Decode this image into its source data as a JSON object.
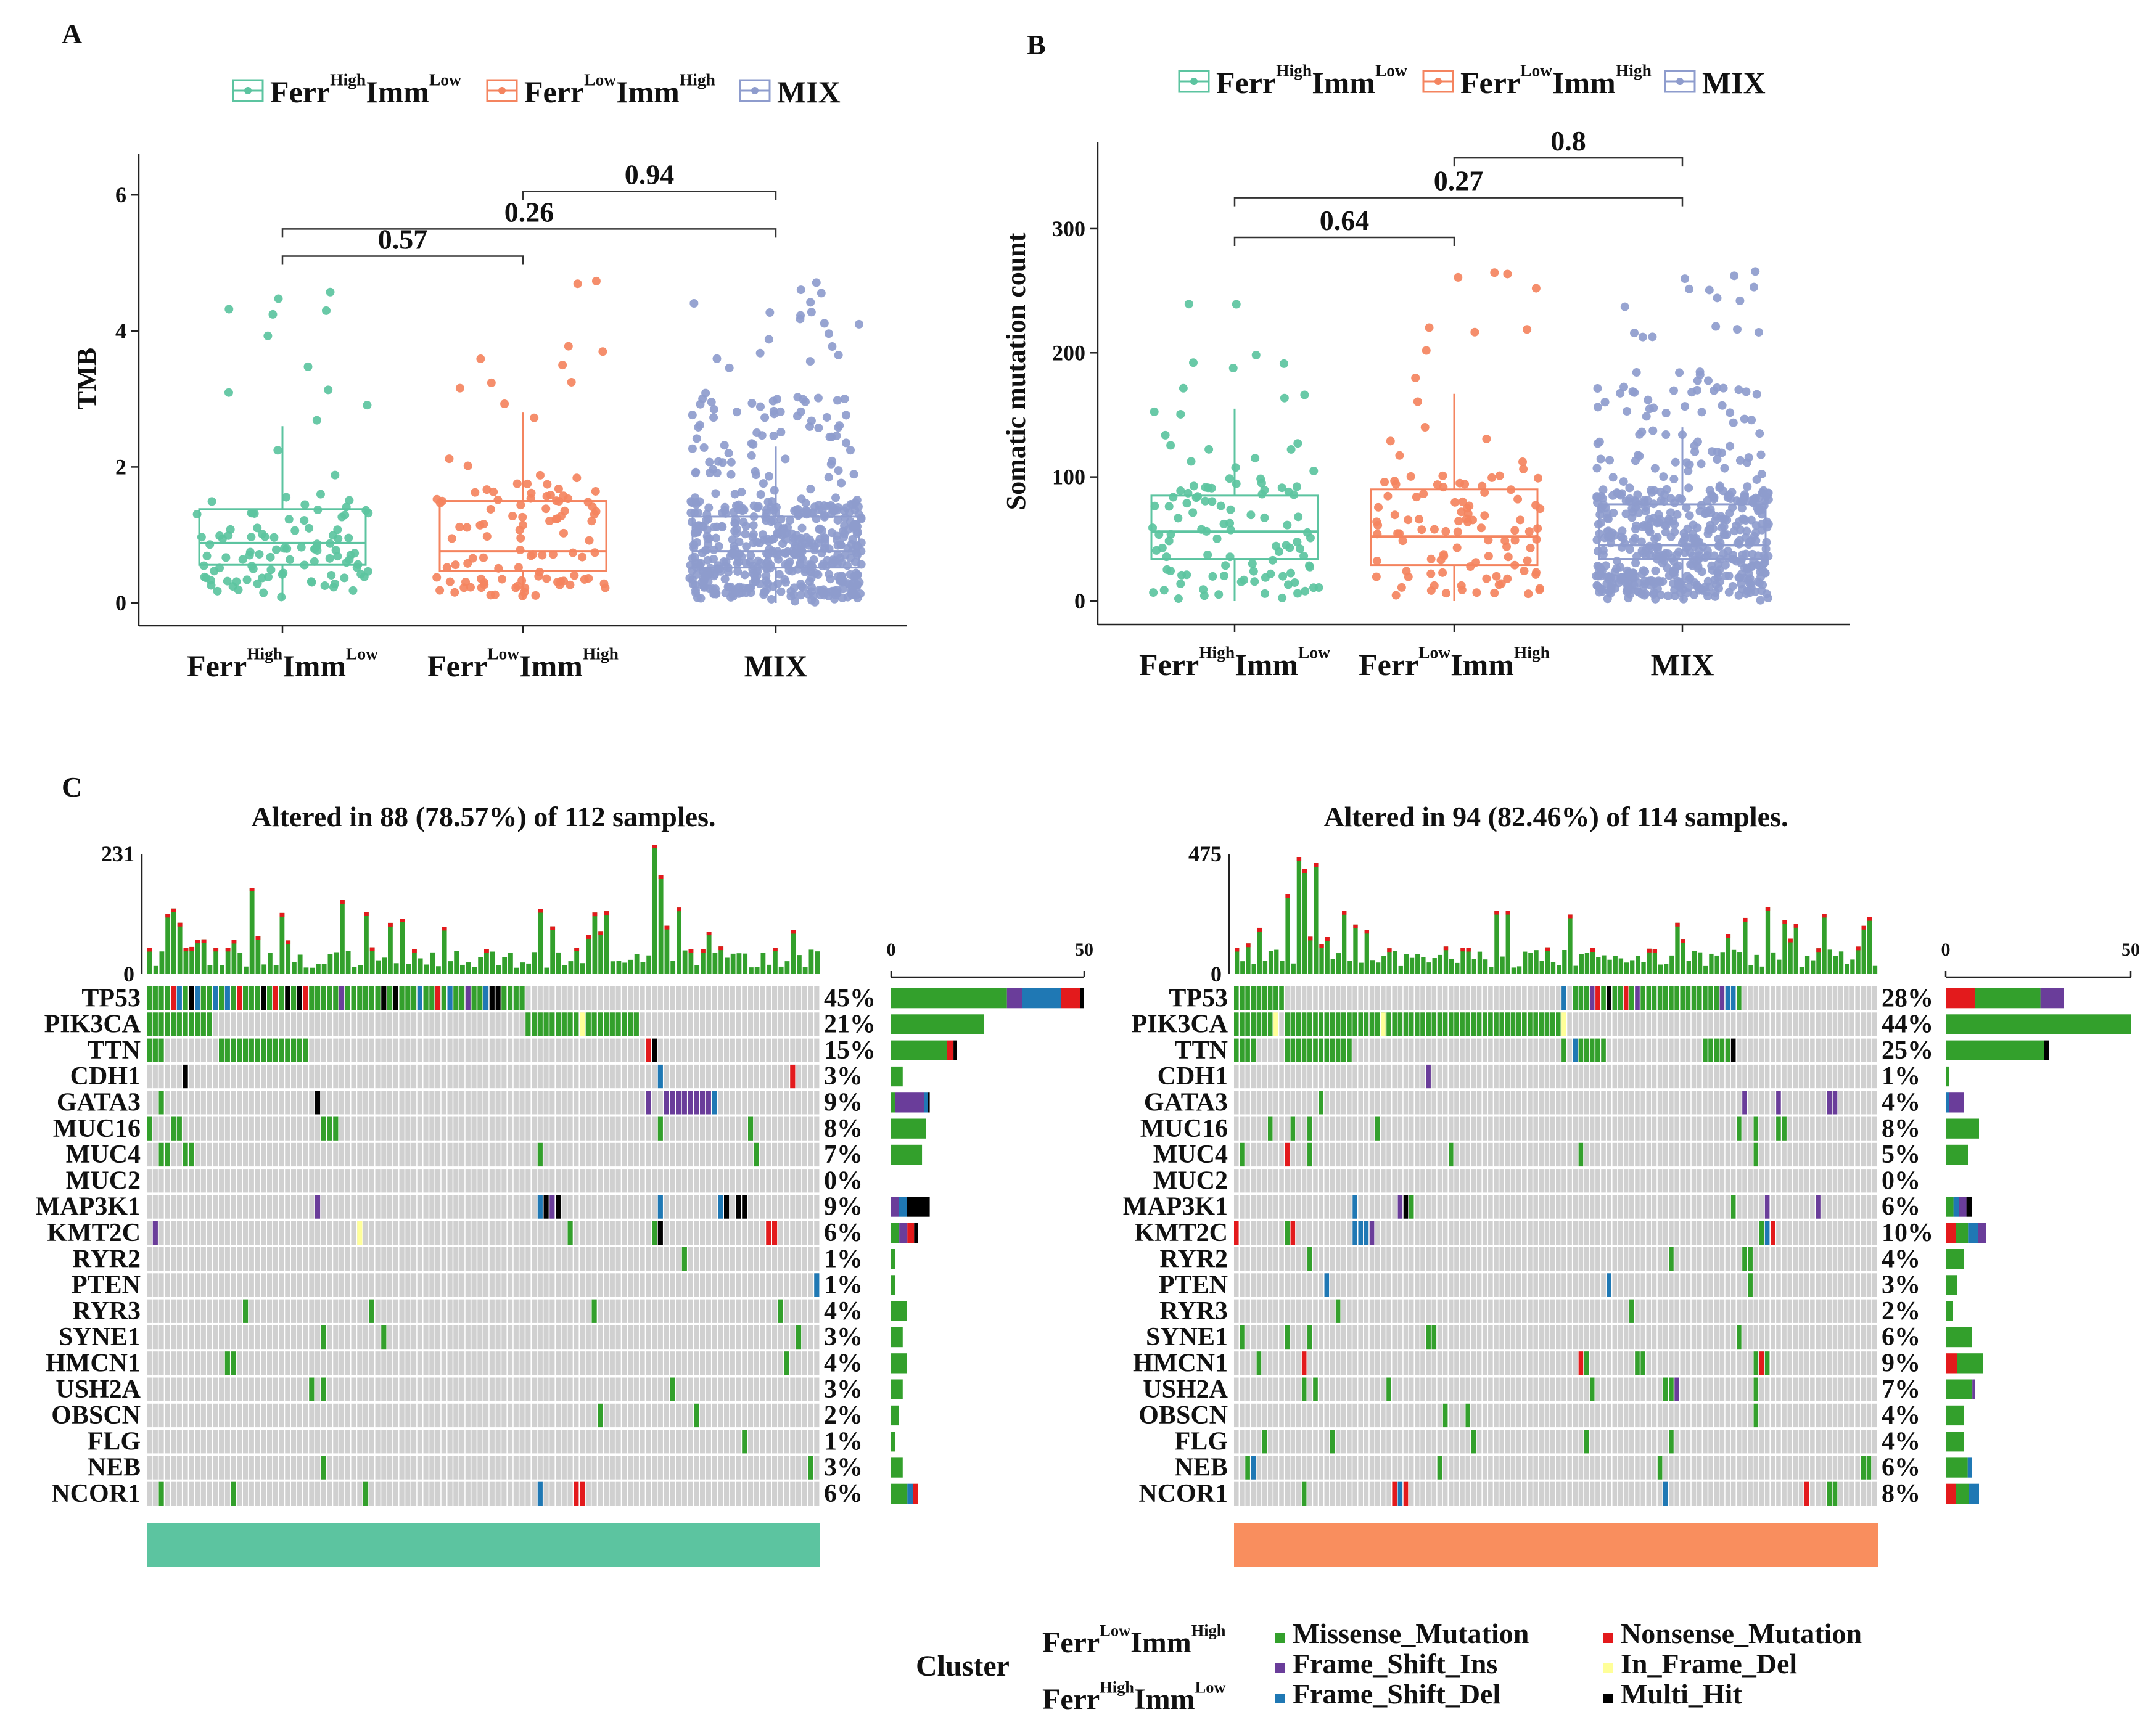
{
  "panels": {
    "A": {
      "letter": "A",
      "ylabel": "TMB",
      "yticks": [
        0,
        2,
        4,
        6
      ],
      "ylim": [
        0,
        6.6
      ],
      "groups": [
        {
          "name": "Ferr",
          "sup1": "High",
          "mid": "Imm",
          "sup2": "Low",
          "color": "#5cc4a0",
          "box": {
            "q1": 0.56,
            "median": 0.88,
            "q3": 1.38,
            "whisker_low": 0.05,
            "whisker_high": 2.6
          }
        },
        {
          "name": "Ferr",
          "sup1": "Low",
          "mid": "Imm",
          "sup2": "High",
          "color": "#f4845f",
          "box": {
            "q1": 0.47,
            "median": 0.76,
            "q3": 1.5,
            "whisker_low": 0.05,
            "whisker_high": 2.8
          }
        },
        {
          "name": "MIX",
          "sup1": "",
          "mid": "",
          "sup2": "",
          "color": "#8e9ccd",
          "box": {
            "q1": 0.52,
            "median": 0.76,
            "q3": 1.27,
            "whisker_low": 0.0,
            "whisker_high": 2.3
          }
        }
      ],
      "brackets": [
        {
          "from": 0,
          "to": 1,
          "label": "0.57",
          "y": 5.1
        },
        {
          "from": 0,
          "to": 2,
          "label": "0.26",
          "y": 5.5
        },
        {
          "from": 1,
          "to": 2,
          "label": "0.94",
          "y": 6.05
        }
      ]
    },
    "B": {
      "letter": "B",
      "ylabel": "Somatic mutation count",
      "yticks": [
        0,
        100,
        200,
        300
      ],
      "ylim": [
        0,
        370
      ],
      "groups": [
        {
          "name": "Ferr",
          "sup1": "High",
          "mid": "Imm",
          "sup2": "Low",
          "color": "#5cc4a0",
          "box": {
            "q1": 34,
            "median": 56,
            "q3": 85,
            "whisker_low": 0,
            "whisker_high": 155
          }
        },
        {
          "name": "Ferr",
          "sup1": "Low",
          "mid": "Imm",
          "sup2": "High",
          "color": "#f4845f",
          "box": {
            "q1": 29,
            "median": 52,
            "q3": 90,
            "whisker_low": 0,
            "whisker_high": 167
          }
        },
        {
          "name": "MIX",
          "sup1": "",
          "mid": "",
          "sup2": "",
          "color": "#8e9ccd",
          "box": {
            "q1": 34,
            "median": 45,
            "q3": 78,
            "whisker_low": 0,
            "whisker_high": 140
          }
        }
      ],
      "brackets": [
        {
          "from": 0,
          "to": 1,
          "label": "0.64",
          "y": 293
        },
        {
          "from": 0,
          "to": 2,
          "label": "0.27",
          "y": 325
        },
        {
          "from": 1,
          "to": 2,
          "label": "0.8",
          "y": 357
        }
      ]
    },
    "C": {
      "letter": "C",
      "genes": [
        "TP53",
        "PIK3CA",
        "TTN",
        "CDH1",
        "GATA3",
        "MUC16",
        "MUC4",
        "MUC2",
        "MAP3K1",
        "KMT2C",
        "RYR2",
        "PTEN",
        "RYR3",
        "SYNE1",
        "HMCN1",
        "USH2A",
        "OBSCN",
        "FLG",
        "NEB",
        "NCOR1"
      ],
      "left": {
        "title": "Altered in 88 (78.57%) of 112 samples.",
        "ymax_label": "231",
        "ymin_label": "0",
        "bar_axis": [
          "0",
          "50"
        ],
        "bar_color": "#5cc4a0",
        "pcts": [
          "45%",
          "21%",
          "15%",
          "3%",
          "9%",
          "8%",
          "7%",
          "0%",
          "9%",
          "6%",
          "1%",
          "1%",
          "4%",
          "3%",
          "4%",
          "3%",
          "2%",
          "1%",
          "3%",
          "6%"
        ],
        "counts": [
          50,
          24,
          17,
          3,
          10,
          9,
          8,
          0,
          10,
          7,
          1,
          1,
          4,
          3,
          4,
          3,
          2,
          1,
          3,
          7
        ]
      },
      "right": {
        "title": "Altered in 94 (82.46%) of 114 samples.",
        "ymax_label": "475",
        "ymin_label": "0",
        "bar_axis": [
          "0",
          "50"
        ],
        "bar_color": "#f98e5e",
        "pcts": [
          "28%",
          "44%",
          "25%",
          "1%",
          "4%",
          "8%",
          "5%",
          "0%",
          "6%",
          "10%",
          "4%",
          "3%",
          "2%",
          "6%",
          "9%",
          "7%",
          "4%",
          "4%",
          "6%",
          "8%"
        ],
        "counts": [
          32,
          50,
          28,
          1,
          5,
          9,
          6,
          0,
          7,
          11,
          5,
          3,
          2,
          7,
          10,
          8,
          5,
          5,
          7,
          9
        ]
      }
    }
  },
  "legend_top": [
    {
      "name": "Ferr",
      "sup1": "High",
      "mid": "Imm",
      "sup2": "Low",
      "color": "#5cc4a0"
    },
    {
      "name": "Ferr",
      "sup1": "Low",
      "mid": "Imm",
      "sup2": "High",
      "color": "#f4845f"
    },
    {
      "name": "MIX",
      "sup1": "",
      "mid": "",
      "sup2": "",
      "color": "#8e9ccd"
    }
  ],
  "bottom_legend": {
    "cluster_label": "Cluster",
    "clusters": [
      {
        "name": "Ferr",
        "sup1": "Low",
        "mid": "Imm",
        "sup2": "High"
      },
      {
        "name": "Ferr",
        "sup1": "High",
        "mid": "Imm",
        "sup2": "Low"
      }
    ],
    "variants": [
      {
        "label": "Missense_Mutation",
        "color": "#33a02c"
      },
      {
        "label": "Nonsense_Mutation",
        "color": "#e31a1c"
      },
      {
        "label": "Frame_Shift_Ins",
        "color": "#6a3d9a"
      },
      {
        "label": "In_Frame_Del",
        "color": "#ffff99"
      },
      {
        "label": "Frame_Shift_Del",
        "color": "#1f78b4"
      },
      {
        "label": "Multi_Hit",
        "color": "#000000"
      }
    ]
  }
}
